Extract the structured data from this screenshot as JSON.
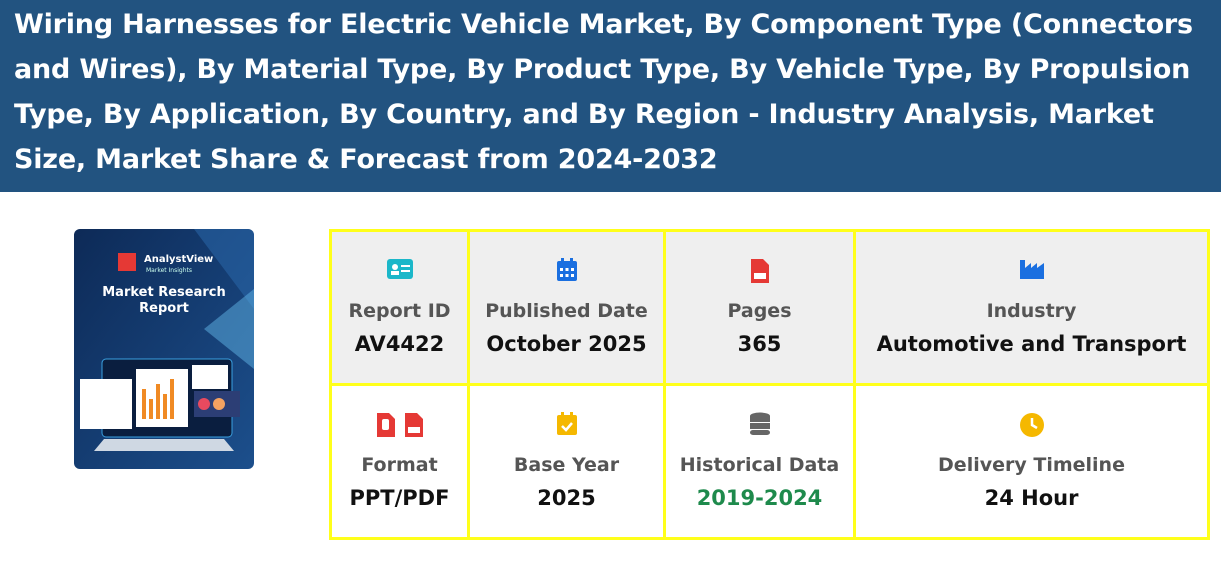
{
  "header": {
    "title": "Wiring Harnesses for Electric Vehicle Market, By Component Type (Connectors and Wires), By Material Type, By Product Type, By Vehicle Type, By Propulsion Type, By Application, By Country, and By Region - Industry Analysis, Market Size, Market Share & Forecast from 2024-2032"
  },
  "cover": {
    "brand": "AnalystView",
    "tagline": "Market Insights",
    "heading": "Market Research Report"
  },
  "details": [
    {
      "label": "Report ID",
      "value": "AV4422"
    },
    {
      "label": "Published Date",
      "value": "October 2025"
    },
    {
      "label": "Pages",
      "value": "365"
    },
    {
      "label": "Industry",
      "value": "Automotive and Transport"
    },
    {
      "label": "Format",
      "value": "PPT/PDF"
    },
    {
      "label": "Base Year",
      "value": "2025"
    },
    {
      "label": "Historical Data",
      "value": "2019-2024"
    },
    {
      "label": "Delivery Timeline",
      "value": "24 Hour"
    }
  ]
}
